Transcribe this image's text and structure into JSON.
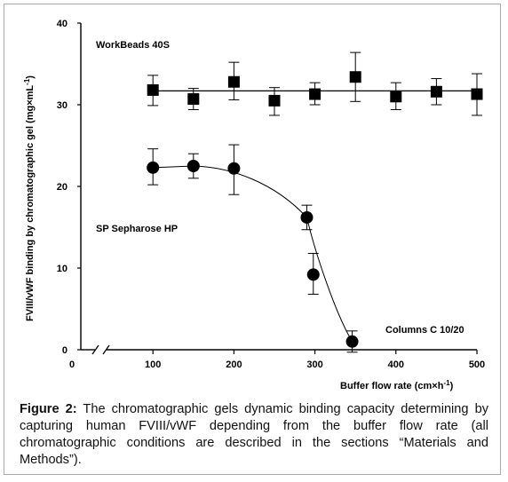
{
  "figure": {
    "caption_label": "Figure 2:",
    "caption_text": " The chromatographic gels dynamic binding capacity determining by capturing human FVIII/vWF depending from the buffer flow rate (all chromatographic conditions are described in the sections “Materials and Methods”)."
  },
  "chart_data": {
    "type": "scatter",
    "title": "",
    "xlabel_text": "Buffer flow rate (cm×h",
    "xlabel_sup": "-1",
    "xlabel_end": ")",
    "ylabel_text": "FVIII/vWF binding by chromatographic gel (mg×mL",
    "ylabel_sup": "-1",
    "ylabel_end": ")",
    "xlim": [
      0,
      500
    ],
    "ylim": [
      0,
      40
    ],
    "x_axis_break": true,
    "x_ticks": [
      0,
      100,
      200,
      300,
      400,
      500
    ],
    "y_ticks": [
      0,
      10,
      20,
      30,
      40
    ],
    "grid": false,
    "annotations": {
      "workbeads": "WorkBeads 40S",
      "sepharose": "SP  Sepharose HP",
      "columns": "Columns C 10/20"
    },
    "series": [
      {
        "label_key": "workbeads",
        "marker": "square",
        "fit": "horizontal",
        "fit_y": 31.7,
        "points": [
          {
            "x": 100,
            "y": 31.8,
            "err_lo": 1.9,
            "err_hi": 1.8
          },
          {
            "x": 150,
            "y": 30.7,
            "err_lo": 1.3,
            "err_hi": 1.3
          },
          {
            "x": 200,
            "y": 32.8,
            "err_lo": 2.2,
            "err_hi": 2.4
          },
          {
            "x": 250,
            "y": 30.5,
            "err_lo": 1.8,
            "err_hi": 1.6
          },
          {
            "x": 300,
            "y": 31.3,
            "err_lo": 1.3,
            "err_hi": 1.4
          },
          {
            "x": 350,
            "y": 33.4,
            "err_lo": 3.0,
            "err_hi": 3.0
          },
          {
            "x": 400,
            "y": 31.0,
            "err_lo": 1.6,
            "err_hi": 1.7
          },
          {
            "x": 450,
            "y": 31.6,
            "err_lo": 1.6,
            "err_hi": 1.6
          },
          {
            "x": 500,
            "y": 31.3,
            "err_lo": 2.6,
            "err_hi": 2.5
          }
        ]
      },
      {
        "label_key": "sepharose",
        "marker": "circle",
        "fit": "sigmoid",
        "points": [
          {
            "x": 100,
            "y": 22.3,
            "err_lo": 2.1,
            "err_hi": 2.3
          },
          {
            "x": 150,
            "y": 22.5,
            "err_lo": 1.5,
            "err_hi": 1.5
          },
          {
            "x": 200,
            "y": 22.2,
            "err_lo": 3.2,
            "err_hi": 2.9
          },
          {
            "x": 290,
            "y": 16.2,
            "err_lo": 1.5,
            "err_hi": 1.5
          },
          {
            "x": 298,
            "y": 9.2,
            "err_lo": 2.4,
            "err_hi": 2.6
          },
          {
            "x": 346,
            "y": 1.0,
            "err_lo": 1.3,
            "err_hi": 1.3
          }
        ]
      }
    ]
  }
}
